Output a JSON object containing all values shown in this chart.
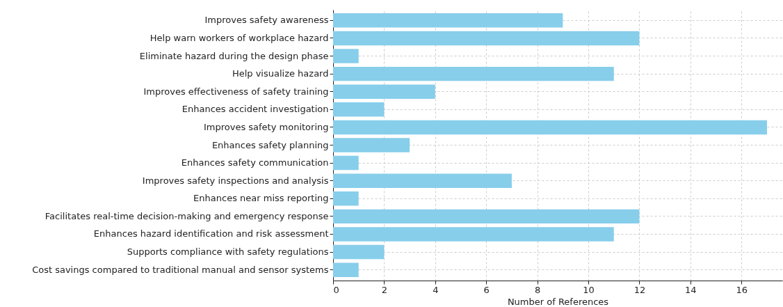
{
  "chart_data": {
    "type": "bar",
    "orientation": "horizontal",
    "xlabel": "Number of References",
    "categories": [
      "Improves safety awareness",
      "Help warn workers of workplace hazard",
      "Eliminate hazard during the design phase",
      "Help visualize hazard",
      "Improves effectiveness of safety training",
      "Enhances accident investigation",
      "Improves safety monitoring",
      "Enhances safety planning",
      "Enhances safety communication",
      "Improves safety inspections and analysis",
      "Enhances near miss reporting",
      "Facilitates real-time decision-making and emergency response",
      "Enhances hazard identification and risk assessment",
      "Supports compliance with safety regulations",
      "Cost savings compared to traditional manual and sensor systems"
    ],
    "values": [
      9,
      12,
      1,
      11,
      4,
      2,
      17,
      3,
      1,
      7,
      1,
      12,
      11,
      2,
      1
    ],
    "color": "#87ceeb",
    "xlim": [
      0,
      17.6
    ],
    "xticks": [
      0,
      2,
      4,
      6,
      8,
      10,
      12,
      14,
      16
    ],
    "grid": true
  }
}
